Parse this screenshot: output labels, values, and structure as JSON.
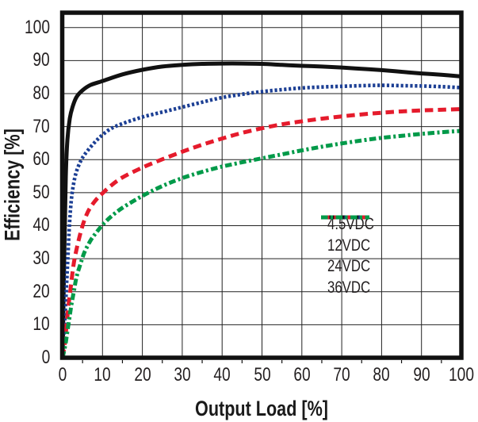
{
  "figure": {
    "background": "#ffffff",
    "grid_color": "#222222",
    "border_color": "#111111",
    "text_color": "#231f20"
  },
  "chart_data": {
    "type": "line",
    "title": "",
    "xlabel": "Output Load [%]",
    "ylabel": "Efficiency [%]",
    "xlim": [
      0,
      100
    ],
    "ylim": [
      0,
      104.5
    ],
    "x_ticks": [
      0,
      10,
      20,
      30,
      40,
      50,
      60,
      70,
      80,
      90,
      100
    ],
    "y_ticks": [
      0,
      10,
      20,
      30,
      40,
      50,
      60,
      70,
      80,
      90,
      100
    ],
    "grid": true,
    "legend_position": "inside-right-middle",
    "series": [
      {
        "name": "4.5VDC",
        "color": "#111111",
        "style": "solid",
        "points": [
          [
            0,
            0
          ],
          [
            0.4,
            30
          ],
          [
            0.8,
            55
          ],
          [
            1.2,
            66
          ],
          [
            1.8,
            72.5
          ],
          [
            2.5,
            76
          ],
          [
            3.5,
            79
          ],
          [
            5,
            81
          ],
          [
            7,
            82.6
          ],
          [
            10,
            83.8
          ],
          [
            15,
            85.8
          ],
          [
            20,
            87.2
          ],
          [
            25,
            88.2
          ],
          [
            30,
            88.7
          ],
          [
            35,
            89
          ],
          [
            40,
            89.1
          ],
          [
            45,
            89.1
          ],
          [
            50,
            89
          ],
          [
            55,
            88.7
          ],
          [
            60,
            88.4
          ],
          [
            65,
            88.2
          ],
          [
            70,
            87.9
          ],
          [
            75,
            87.5
          ],
          [
            80,
            87.1
          ],
          [
            85,
            86.6
          ],
          [
            90,
            86.1
          ],
          [
            95,
            85.7
          ],
          [
            100,
            85.2
          ]
        ]
      },
      {
        "name": "12VDC",
        "color": "#1c3f94",
        "style": "dotted",
        "points": [
          [
            0,
            0
          ],
          [
            0.5,
            10
          ],
          [
            0.9,
            20
          ],
          [
            1.3,
            30
          ],
          [
            1.7,
            40
          ],
          [
            2.2,
            48
          ],
          [
            2.8,
            53
          ],
          [
            3.5,
            56.5
          ],
          [
            4.5,
            59.5
          ],
          [
            5.5,
            61.5
          ],
          [
            7,
            63.8
          ],
          [
            8.5,
            65.8
          ],
          [
            10,
            67.5
          ],
          [
            12,
            69.3
          ],
          [
            15,
            70.9
          ],
          [
            20,
            72.9
          ],
          [
            25,
            74.4
          ],
          [
            30,
            75.9
          ],
          [
            35,
            77.4
          ],
          [
            40,
            78.8
          ],
          [
            45,
            79.8
          ],
          [
            50,
            80.6
          ],
          [
            55,
            81.2
          ],
          [
            60,
            81.7
          ],
          [
            65,
            82
          ],
          [
            70,
            82.2
          ],
          [
            75,
            82.4
          ],
          [
            80,
            82.5
          ],
          [
            85,
            82.4
          ],
          [
            90,
            82.3
          ],
          [
            95,
            82.1
          ],
          [
            100,
            81.8
          ]
        ]
      },
      {
        "name": "24VDC",
        "color": "#e51b2c",
        "style": "dashed",
        "points": [
          [
            0,
            0
          ],
          [
            0.6,
            5
          ],
          [
            1,
            10
          ],
          [
            1.5,
            16
          ],
          [
            2,
            21
          ],
          [
            2.5,
            26
          ],
          [
            3,
            30
          ],
          [
            4,
            35.5
          ],
          [
            5,
            40
          ],
          [
            6,
            43.3
          ],
          [
            7,
            45.6
          ],
          [
            8.5,
            48
          ],
          [
            10,
            49.8
          ],
          [
            12,
            52
          ],
          [
            15,
            54.6
          ],
          [
            20,
            57.6
          ],
          [
            25,
            60.1
          ],
          [
            30,
            62.4
          ],
          [
            35,
            64.5
          ],
          [
            40,
            66.4
          ],
          [
            45,
            68.1
          ],
          [
            50,
            69.5
          ],
          [
            55,
            70.7
          ],
          [
            60,
            71.6
          ],
          [
            65,
            72.4
          ],
          [
            70,
            73.1
          ],
          [
            75,
            73.7
          ],
          [
            80,
            74.2
          ],
          [
            85,
            74.6
          ],
          [
            90,
            74.9
          ],
          [
            95,
            75.1
          ],
          [
            100,
            75.3
          ]
        ]
      },
      {
        "name": "36VDC",
        "color": "#009a49",
        "style": "dashdot",
        "points": [
          [
            0,
            0
          ],
          [
            0.7,
            4
          ],
          [
            1.2,
            8
          ],
          [
            1.7,
            12
          ],
          [
            2.2,
            16
          ],
          [
            2.8,
            20
          ],
          [
            3.5,
            24.5
          ],
          [
            4.5,
            28.5
          ],
          [
            5.5,
            32
          ],
          [
            7,
            35.5
          ],
          [
            8.5,
            38
          ],
          [
            10,
            40.2
          ],
          [
            12,
            42.6
          ],
          [
            15,
            45.4
          ],
          [
            20,
            49
          ],
          [
            25,
            52
          ],
          [
            30,
            54.4
          ],
          [
            35,
            56.3
          ],
          [
            40,
            57.9
          ],
          [
            45,
            59.2
          ],
          [
            50,
            60.4
          ],
          [
            55,
            61.6
          ],
          [
            60,
            62.8
          ],
          [
            65,
            63.9
          ],
          [
            70,
            64.9
          ],
          [
            75,
            65.8
          ],
          [
            80,
            66.6
          ],
          [
            85,
            67.2
          ],
          [
            90,
            67.8
          ],
          [
            95,
            68.3
          ],
          [
            100,
            68.7
          ]
        ]
      }
    ]
  }
}
